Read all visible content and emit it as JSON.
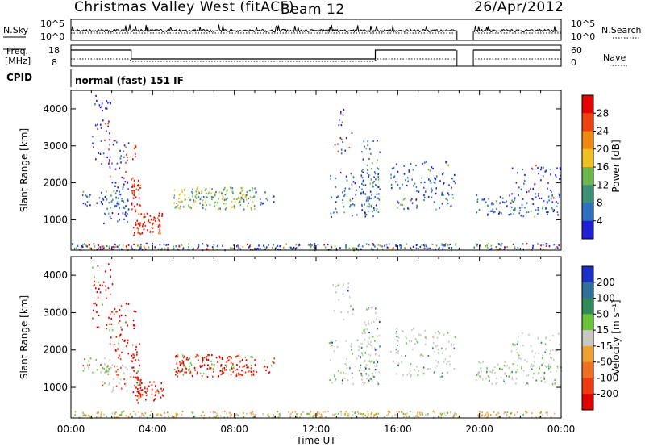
{
  "header": {
    "station": "Christmas Valley West (fitACF)",
    "beam": "Beam 12",
    "date": "26/Apr/2012"
  },
  "noise_panel": {
    "left_label": "N.Sky",
    "right_label": "N.Search",
    "left_ticks": [
      "10^5",
      "10^0"
    ],
    "right_ticks": [
      "10^5",
      "10^0"
    ]
  },
  "freq_panel": {
    "left_label_1": "Freq.",
    "left_label_2": "[MHz]",
    "right_label": "Nave",
    "left_ticks": [
      "18",
      "8"
    ],
    "right_ticks": [
      "60",
      "0"
    ]
  },
  "cpid": {
    "label": "CPID",
    "text": "normal (fast) 151 IF"
  },
  "chart_data": [
    {
      "type": "heatmap",
      "name": "power",
      "ylabel": "Slant Range [km]",
      "xlabel": "Time UT",
      "x_ticks": [
        "00:00",
        "04:00",
        "08:00",
        "12:00",
        "16:00",
        "20:00",
        "00:00"
      ],
      "x_range_hours": [
        0,
        24
      ],
      "ylim_km": [
        180,
        4500
      ],
      "y_ticks": [
        1000,
        2000,
        3000,
        4000
      ],
      "colorbar": {
        "label": "Power [dB]",
        "ticks": [
          "4",
          "8",
          "12",
          "16",
          "20",
          "24",
          "28"
        ],
        "colors": [
          "#1f1fd6",
          "#2f6fc0",
          "#3d8f78",
          "#6db84a",
          "#f0c020",
          "#f08a10",
          "#ee4010",
          "#e60000"
        ]
      },
      "data_gap_hours": [
        18.9,
        19.7
      ]
    },
    {
      "type": "heatmap",
      "name": "velocity",
      "ylabel": "Slant Range [km]",
      "xlabel": "Time UT",
      "x_ticks": [
        "00:00",
        "04:00",
        "08:00",
        "12:00",
        "16:00",
        "20:00",
        "00:00"
      ],
      "x_range_hours": [
        0,
        24
      ],
      "ylim_km": [
        180,
        4500
      ],
      "y_ticks": [
        1000,
        2000,
        3000,
        4000
      ],
      "colorbar": {
        "label": "Velocity [m s⁻¹]",
        "ticks": [
          "200",
          "100",
          "50",
          "15",
          "-15",
          "-50",
          "-100",
          "-200"
        ],
        "colors": [
          "#1a2fc8",
          "#2f6f9a",
          "#2f8a5a",
          "#6ac43a",
          "#c8c8c0",
          "#f0a030",
          "#f07020",
          "#ef3a10",
          "#e00000"
        ]
      },
      "data_gap_hours": [
        18.9,
        19.7
      ]
    }
  ]
}
